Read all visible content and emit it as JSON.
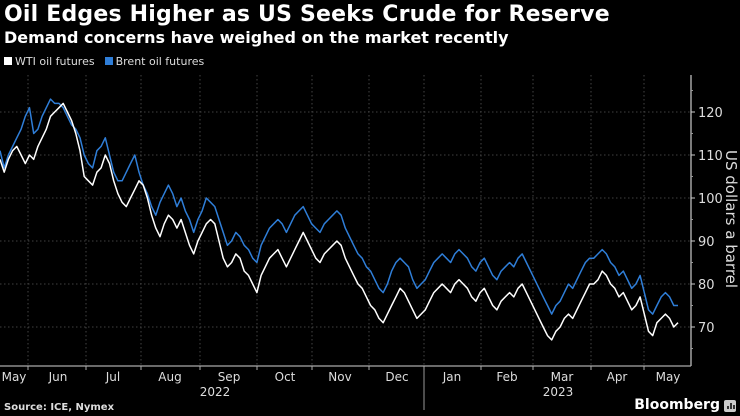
{
  "header": {
    "title": "Oil Edges Higher as US Seeks Crude for Reserve",
    "subtitle": "Demand concerns have weighed on the market recently"
  },
  "footer": {
    "source": "Source: ICE, Nymex",
    "brand": "Bloomberg",
    "brand_icon": "bloomberg-chart-icon"
  },
  "colors": {
    "background": "#000000",
    "wti": "#ffffff",
    "brent": "#2f7ed8",
    "grid": "#555555",
    "axis": "#cccccc"
  },
  "chart_data": {
    "type": "line",
    "title": "Oil Edges Higher as US Seeks Crude for Reserve",
    "subtitle": "Demand concerns have weighed on the market recently",
    "xlabel": "",
    "ylabel": "US dollars a barrel",
    "ylim": [
      62,
      127
    ],
    "yticks": [
      70,
      80,
      90,
      100,
      110,
      120
    ],
    "x_months": [
      "May",
      "Jun",
      "Jul",
      "Aug",
      "Sep",
      "Oct",
      "Nov",
      "Dec",
      "Jan",
      "Feb",
      "Mar",
      "Apr",
      "May"
    ],
    "x_years": [
      {
        "label": "2022",
        "month_index": 4
      },
      {
        "label": "2023",
        "month_index": 10
      }
    ],
    "x_range_months": [
      0.0,
      12.75
    ],
    "grid": true,
    "legend": "top-left",
    "series": [
      {
        "name": "WTI oil futures",
        "color": "#ffffff",
        "values": [
          109,
          106,
          109,
          111,
          112,
          110,
          108,
          110,
          109,
          112,
          114,
          116,
          119,
          120,
          121,
          122,
          120,
          118,
          115,
          111,
          105,
          104,
          103,
          106,
          107,
          110,
          108,
          104,
          101,
          99,
          98,
          100,
          102,
          104,
          103,
          100,
          96,
          93,
          91,
          94,
          96,
          95,
          93,
          95,
          92,
          89,
          87,
          90,
          92,
          94,
          95,
          94,
          90,
          86,
          84,
          85,
          87,
          86,
          83,
          82,
          80,
          78,
          82,
          84,
          86,
          87,
          88,
          86,
          84,
          86,
          88,
          90,
          92,
          90,
          88,
          86,
          85,
          87,
          88,
          89,
          90,
          89,
          86,
          84,
          82,
          80,
          79,
          77,
          75,
          74,
          72,
          71,
          73,
          75,
          77,
          79,
          78,
          76,
          74,
          72,
          73,
          74,
          76,
          78,
          79,
          80,
          79,
          78,
          80,
          81,
          80,
          79,
          77,
          76,
          78,
          79,
          77,
          75,
          74,
          76,
          77,
          78,
          77,
          79,
          80,
          78,
          76,
          74,
          72,
          70,
          68,
          67,
          69,
          70,
          72,
          73,
          72,
          74,
          76,
          78,
          80,
          80,
          81,
          83,
          82,
          80,
          79,
          77,
          78,
          76,
          74,
          75,
          77,
          73,
          69,
          68,
          71,
          72,
          73,
          72,
          70,
          71
        ]
      },
      {
        "name": "Brent oil futures",
        "color": "#2f7ed8",
        "values": [
          111,
          107,
          110,
          112,
          114,
          116,
          119,
          121,
          115,
          116,
          119,
          121,
          123,
          122,
          122,
          121,
          119,
          117,
          116,
          114,
          110,
          108,
          107,
          111,
          112,
          114,
          110,
          106,
          104,
          104,
          106,
          108,
          110,
          106,
          103,
          101,
          98,
          96,
          99,
          101,
          103,
          101,
          98,
          100,
          97,
          95,
          92,
          95,
          97,
          100,
          99,
          98,
          95,
          92,
          89,
          90,
          92,
          91,
          89,
          88,
          86,
          85,
          89,
          91,
          93,
          94,
          95,
          94,
          92,
          94,
          96,
          97,
          98,
          96,
          94,
          93,
          92,
          94,
          95,
          96,
          97,
          96,
          93,
          91,
          89,
          87,
          86,
          84,
          83,
          81,
          79,
          78,
          80,
          83,
          85,
          86,
          85,
          84,
          81,
          79,
          80,
          81,
          83,
          85,
          86,
          87,
          86,
          85,
          87,
          88,
          87,
          86,
          84,
          83,
          85,
          86,
          84,
          82,
          81,
          83,
          84,
          85,
          84,
          86,
          87,
          85,
          83,
          81,
          79,
          77,
          75,
          73,
          75,
          76,
          78,
          80,
          79,
          81,
          83,
          85,
          86,
          86,
          87,
          88,
          87,
          85,
          84,
          82,
          83,
          81,
          79,
          80,
          82,
          78,
          74,
          73,
          75,
          77,
          78,
          77,
          75,
          75
        ]
      }
    ]
  },
  "legend": {
    "items": [
      {
        "label": "WTI oil futures",
        "color": "#ffffff"
      },
      {
        "label": "Brent oil futures",
        "color": "#2f7ed8"
      }
    ]
  },
  "axis": {
    "y_title": "US dollars a barrel",
    "y_ticks": [
      "70",
      "80",
      "90",
      "100",
      "110",
      "120"
    ],
    "months": [
      "May",
      "Jun",
      "Jul",
      "Aug",
      "Sep",
      "Oct",
      "Nov",
      "Dec",
      "Jan",
      "Feb",
      "Mar",
      "Apr",
      "May"
    ],
    "years": [
      "2022",
      "2023"
    ]
  }
}
